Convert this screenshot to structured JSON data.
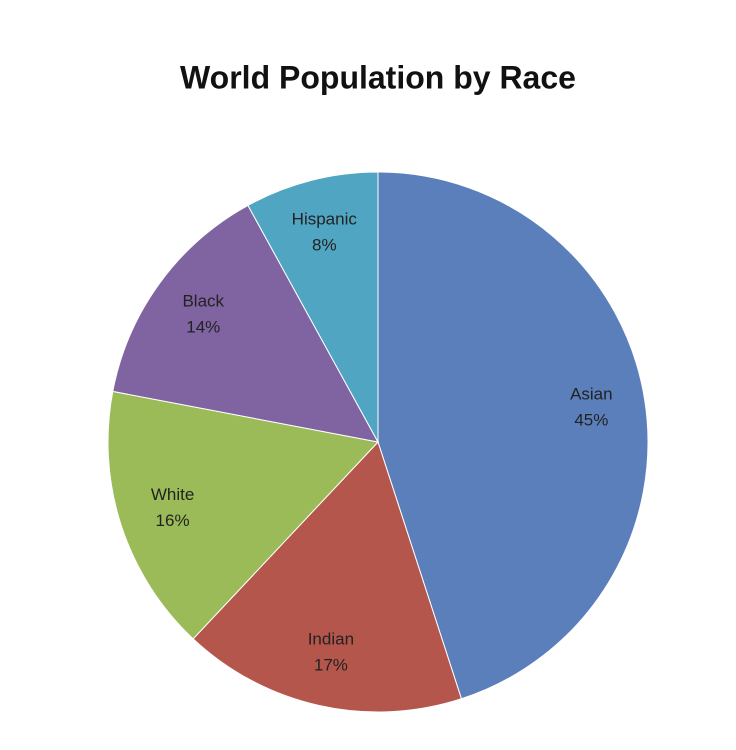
{
  "chart_data": {
    "type": "pie",
    "title": "World Population by Race",
    "categories": [
      "Asian",
      "Indian",
      "White",
      "Black",
      "Hispanic"
    ],
    "values": [
      45,
      17,
      16,
      14,
      8
    ],
    "value_labels": [
      "45%",
      "17%",
      "16%",
      "14%",
      "8%"
    ],
    "colors": [
      "#5b7fbb",
      "#b5564c",
      "#9bbb59",
      "#8063a1",
      "#4fa5c2"
    ]
  }
}
